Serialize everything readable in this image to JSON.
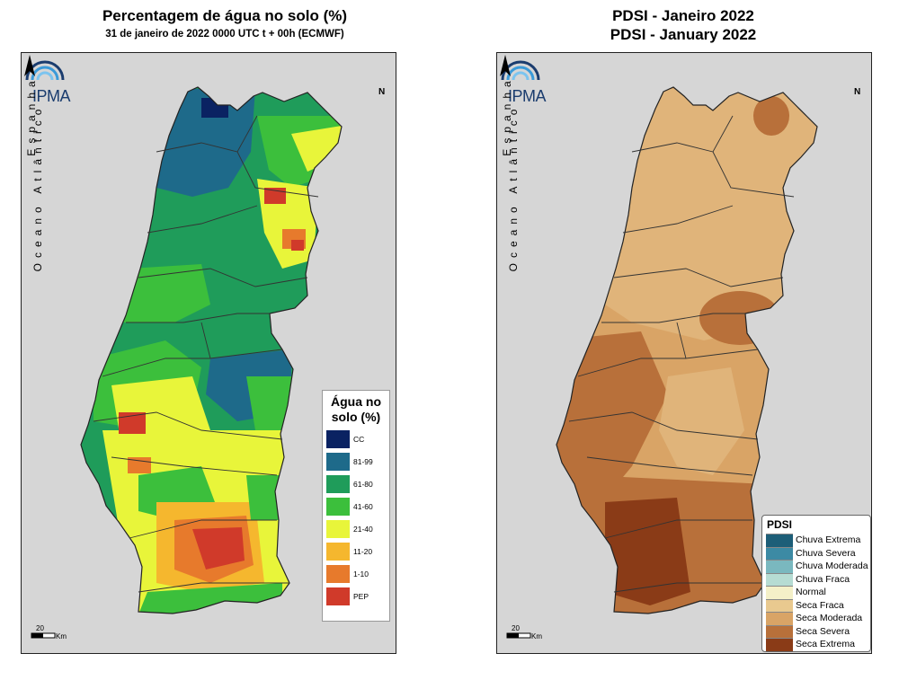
{
  "left_map": {
    "title": "Percentagem de água no solo (%)",
    "subtitle": "31 de janeiro de 2022 0000 UTC t + 00h (ECMWF)",
    "logo_text": "IPMA",
    "north_label": "N",
    "ocean_label": "Oceano Atlântico",
    "land_label": "Espanha",
    "scale_value": "20",
    "scale_unit": "Km",
    "legend": {
      "title_line1": "Água no",
      "title_line2": "solo (%)",
      "items": [
        {
          "label": "CC",
          "color": "#0a2262"
        },
        {
          "label": "81-99",
          "color": "#1e6a8a"
        },
        {
          "label": "61-80",
          "color": "#1f9c5a"
        },
        {
          "label": "41-60",
          "color": "#3cbf3c"
        },
        {
          "label": "21-40",
          "color": "#e8f53a"
        },
        {
          "label": "11-20",
          "color": "#f5b72e"
        },
        {
          "label": "1-10",
          "color": "#e77a2c"
        },
        {
          "label": "PEP",
          "color": "#d03a2a"
        }
      ]
    }
  },
  "right_map": {
    "title_line1": "PDSI - Janeiro 2022",
    "title_line2": "PDSI - January 2022",
    "logo_text": "IPMA",
    "north_label": "N",
    "ocean_label": "Oceano Atlântico",
    "land_label": "Espanha",
    "scale_value": "20",
    "scale_unit": "Km",
    "legend": {
      "title": "PDSI",
      "items": [
        {
          "label": "Chuva Extrema",
          "color": "#1d5e78"
        },
        {
          "label": "Chuva Severa",
          "color": "#3c8aa4"
        },
        {
          "label": "Chuva Moderada",
          "color": "#7ab8bf"
        },
        {
          "label": "Chuva Fraca",
          "color": "#b6dcd3"
        },
        {
          "label": "Normal",
          "color": "#f4f0c8"
        },
        {
          "label": "Seca Fraca",
          "color": "#e9c98f"
        },
        {
          "label": "Seca Moderada",
          "color": "#d9a466"
        },
        {
          "label": "Seca Severa",
          "color": "#b8703a"
        },
        {
          "label": "Seca Extrema",
          "color": "#8a3b17"
        }
      ]
    }
  }
}
